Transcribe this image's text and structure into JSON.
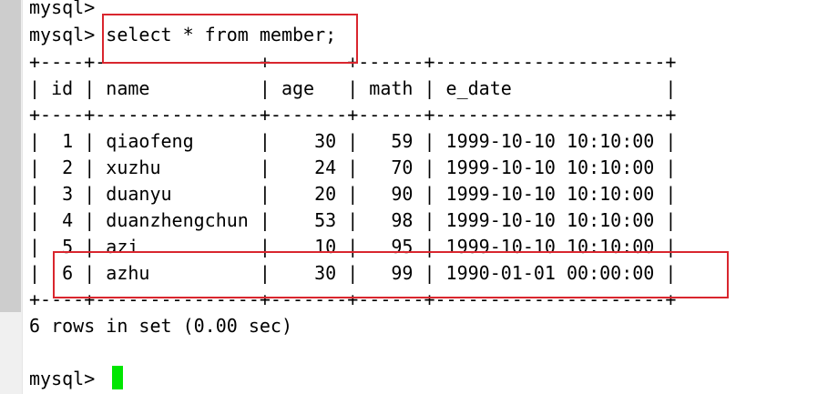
{
  "terminal": {
    "prompt_partial": "mysql>",
    "command_line": "mysql> select * from member;",
    "table": {
      "border": "+----+---------------+-------+------+---------------------+",
      "header": "| id | name          | age   | math | e_date              |",
      "rows": [
        "|  1 | qiaofeng      |    30 |   59 | 1999-10-10 10:10:00 |",
        "|  2 | xuzhu         |    24 |   70 | 1999-10-10 10:10:00 |",
        "|  3 | duanyu        |    20 |   90 | 1999-10-10 10:10:00 |",
        "|  4 | duanzhengchun |    53 |   98 | 1999-10-10 10:10:00 |",
        "|  5 | azi           |    10 |   95 | 1999-10-10 10:10:00 |",
        "|  6 | azhu          |    30 |   99 | 1990-01-01 00:00:00 |"
      ],
      "columns": [
        "id",
        "name",
        "age",
        "math",
        "e_date"
      ]
    },
    "summary": "6 rows in set (0.00 sec)",
    "prompt_final": "mysql> ",
    "colors": {
      "highlight": "#d9262e",
      "cursor": "#00e600",
      "text": "#000000",
      "background": "#ffffff"
    }
  }
}
